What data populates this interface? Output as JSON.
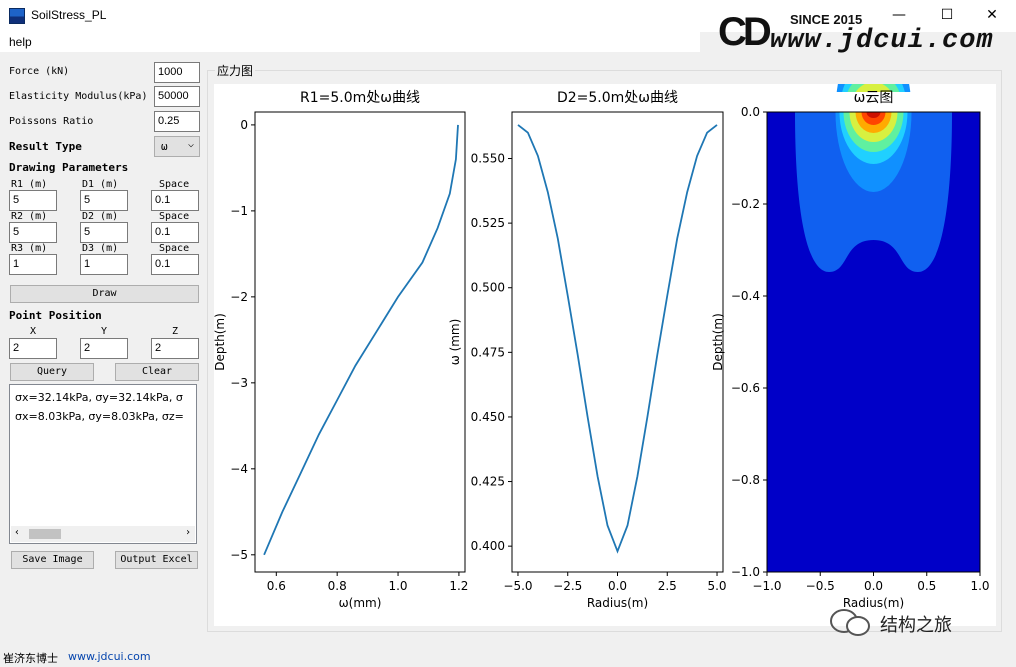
{
  "window": {
    "title": "SoilStress_PL",
    "min_label": "—",
    "max_label": "☐",
    "close_label": "✕"
  },
  "logo": {
    "since": "SINCE 2015",
    "url": "www.jdcui.com",
    "mark": "CD"
  },
  "menu": {
    "help": "help"
  },
  "params": {
    "force_label": "Force (kN)",
    "force_value": "1000",
    "elasticity_label": "Elasticity Modulus(kPa)",
    "elasticity_value": "50000",
    "poissons_label": "Poissons Ratio",
    "poissons_value": "0.25",
    "result_type_label": "Result Type",
    "result_type_value": "ω"
  },
  "drawing": {
    "heading": "Drawing Parameters",
    "rows": [
      {
        "r_label": "R1 (m)",
        "r_value": "5",
        "d_label": "D1 (m)",
        "d_value": "5",
        "s_label": "Space",
        "s_value": "0.1"
      },
      {
        "r_label": "R2 (m)",
        "r_value": "5",
        "d_label": "D2 (m)",
        "d_value": "5",
        "s_label": "Space",
        "s_value": "0.1"
      },
      {
        "r_label": "R3 (m)",
        "r_value": "1",
        "d_label": "D3 (m)",
        "d_value": "1",
        "s_label": "Space",
        "s_value": "0.1"
      }
    ],
    "draw_button": "Draw"
  },
  "point": {
    "heading": "Point Position",
    "x_label": "X",
    "y_label": "Y",
    "z_label": "Z",
    "x_value": "2",
    "y_value": "2",
    "z_value": "2",
    "query_button": "Query",
    "clear_button": "Clear"
  },
  "results": [
    "σx=32.14kPa, σy=32.14kPa, σ",
    "σx=8.03kPa, σy=8.03kPa, σz="
  ],
  "buttons": {
    "save_image": "Save Image",
    "output_excel": "Output Excel"
  },
  "group_title": "应力图",
  "status": {
    "author": "崔济东博士",
    "url": "www.jdcui.com"
  },
  "watermark": "结构之旅",
  "colors": {
    "line": "#1f77b4",
    "contour_bg": "#0000c8"
  },
  "chart_data": [
    {
      "type": "line",
      "title": "R1=5.0m处ω曲线",
      "xlabel": "ω(mm)",
      "ylabel": "Depth(m)",
      "xlim": [
        0.53,
        1.22
      ],
      "ylim": [
        -5.2,
        0.15
      ],
      "x_ticks": [
        "0.6",
        "0.8",
        "1.0",
        "1.2"
      ],
      "y_ticks": [
        "0",
        "−1",
        "−2",
        "−3",
        "−4",
        "−5"
      ],
      "x": [
        1.197,
        1.19,
        1.17,
        1.13,
        1.08,
        1.0,
        0.93,
        0.86,
        0.8,
        0.74,
        0.68,
        0.62,
        0.56
      ],
      "y": [
        0.0,
        -0.4,
        -0.8,
        -1.2,
        -1.6,
        -2.0,
        -2.4,
        -2.8,
        -3.2,
        -3.6,
        -4.05,
        -4.5,
        -5.0
      ]
    },
    {
      "type": "line",
      "title": "D2=5.0m处ω曲线",
      "xlabel": "Radius(m)",
      "ylabel": "ω (mm)",
      "xlim": [
        -5.3,
        5.3
      ],
      "ylim": [
        0.39,
        0.568
      ],
      "x_ticks": [
        "−5.0",
        "−2.5",
        "0.0",
        "2.5",
        "5.0"
      ],
      "y_ticks": [
        "0.400",
        "0.425",
        "0.450",
        "0.475",
        "0.500",
        "0.525",
        "0.550"
      ],
      "x": [
        -5.0,
        -4.5,
        -4.0,
        -3.5,
        -3.0,
        -2.5,
        -2.0,
        -1.5,
        -1.0,
        -0.5,
        0.0,
        0.5,
        1.0,
        1.5,
        2.0,
        2.5,
        3.0,
        3.5,
        4.0,
        4.5,
        5.0
      ],
      "y": [
        0.563,
        0.56,
        0.551,
        0.537,
        0.519,
        0.497,
        0.474,
        0.45,
        0.427,
        0.408,
        0.398,
        0.408,
        0.427,
        0.45,
        0.474,
        0.497,
        0.519,
        0.537,
        0.551,
        0.56,
        0.563
      ]
    },
    {
      "type": "heatmap",
      "title": "ω云图",
      "xlabel": "Radius(m)",
      "ylabel": "Depth(m)",
      "xlim": [
        -1.0,
        1.0
      ],
      "ylim": [
        -1.0,
        0.0
      ],
      "x_ticks": [
        "−1.0",
        "−0.5",
        "0.0",
        "0.5",
        "1.0"
      ],
      "y_ticks": [
        "0.0",
        "−0.2",
        "−0.4",
        "−0.6",
        "−0.8",
        "−1.0"
      ]
    }
  ]
}
